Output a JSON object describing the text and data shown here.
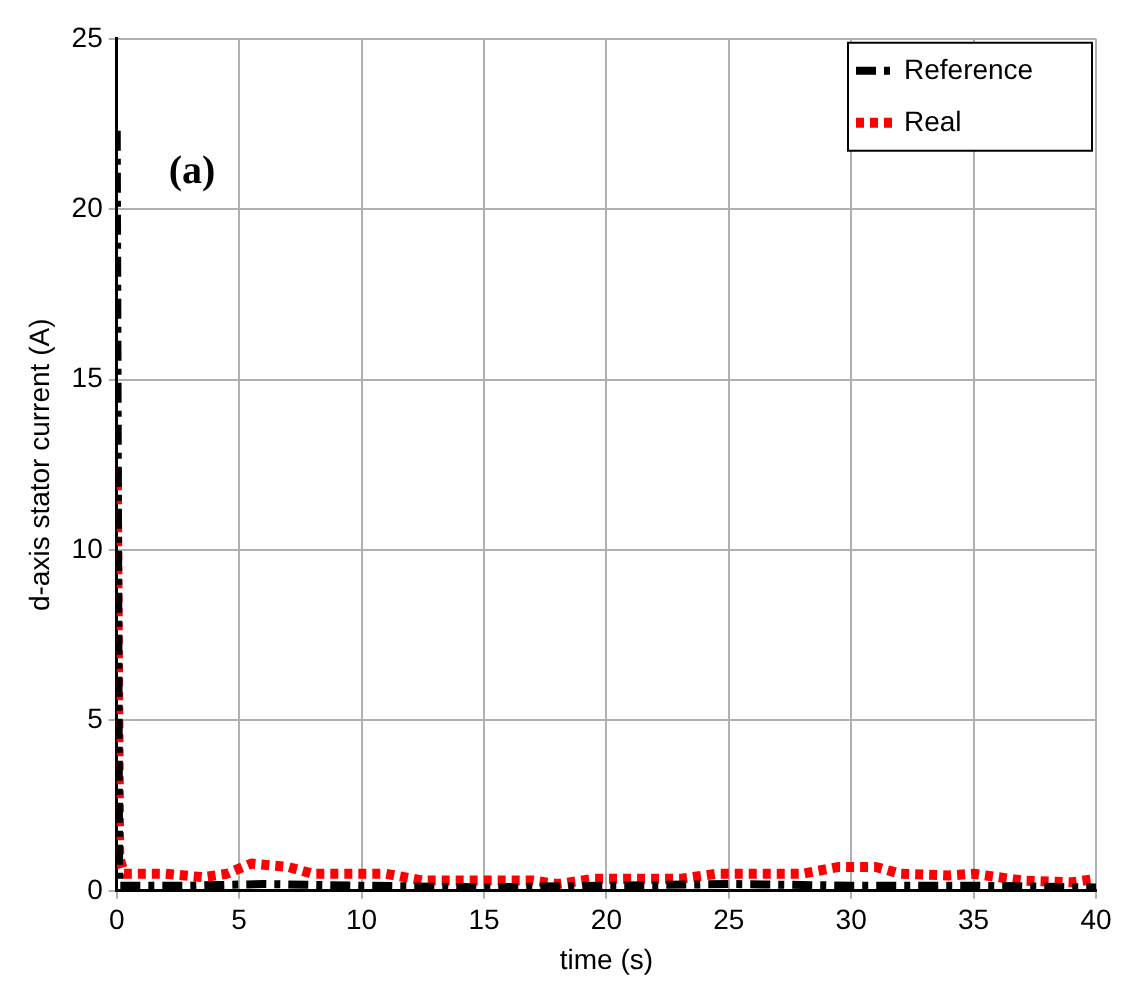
{
  "chart_data": {
    "type": "line",
    "xlabel": "time (s)",
    "ylabel": "d-axis stator current (A)",
    "annotations": [
      "(a)"
    ],
    "xlim": [
      0,
      40
    ],
    "xticks": [
      0,
      5,
      10,
      15,
      20,
      25,
      30,
      35,
      40
    ],
    "ylim": [
      0,
      25
    ],
    "yticks": [
      0,
      5,
      10,
      15,
      20,
      25
    ],
    "grid": true,
    "legend": "top right",
    "marker": "none",
    "series": [
      {
        "name": "Reference",
        "color": "#000000",
        "line_style": "dashed",
        "x": [
          0,
          0.1,
          3,
          6,
          10,
          15,
          20,
          25,
          30,
          35,
          40
        ],
        "values": [
          22.3,
          0.15,
          0.15,
          0.2,
          0.15,
          0.1,
          0.15,
          0.2,
          0.15,
          0.15,
          0.1
        ]
      },
      {
        "name": "Real",
        "color": "#ff0000",
        "line_style": "dotted",
        "x": [
          0,
          0.1,
          0.3,
          2,
          3.5,
          4.5,
          5.5,
          7,
          8,
          11,
          12.5,
          17,
          18,
          19.5,
          23,
          24.5,
          28,
          29.5,
          31,
          32,
          34,
          35,
          37,
          39,
          40
        ],
        "values": [
          12.4,
          1,
          0.5,
          0.5,
          0.4,
          0.5,
          0.8,
          0.7,
          0.5,
          0.5,
          0.3,
          0.3,
          0.2,
          0.35,
          0.35,
          0.5,
          0.5,
          0.7,
          0.7,
          0.5,
          0.45,
          0.5,
          0.3,
          0.25,
          0.35
        ]
      }
    ]
  }
}
